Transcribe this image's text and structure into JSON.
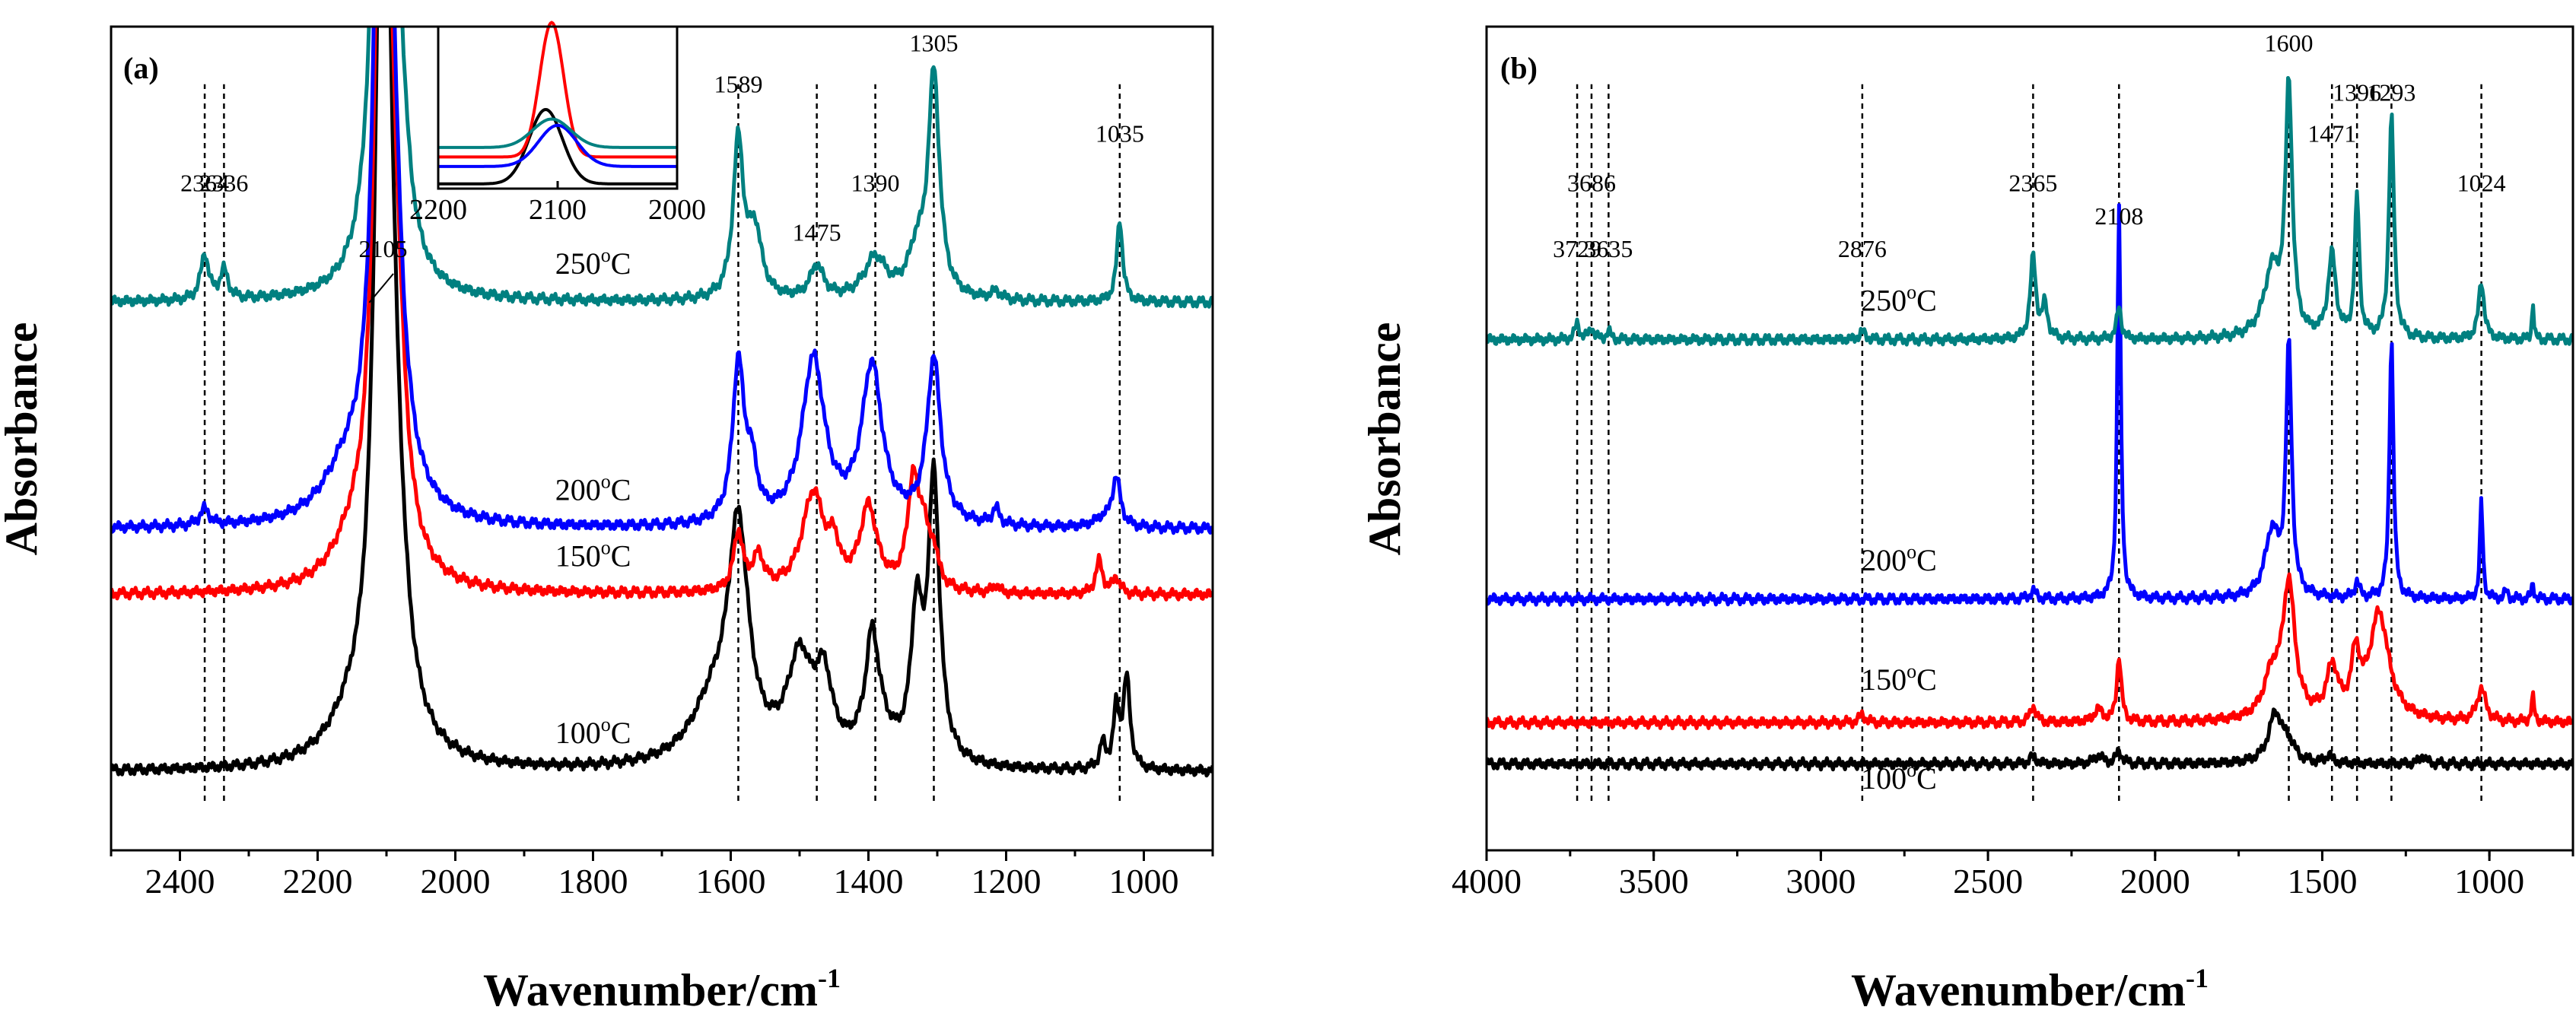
{
  "chart_data": [
    {
      "panel": "(a)",
      "type": "line",
      "title": "",
      "xlabel": "Wavenumber/cm",
      "xlabel_sup": "-1",
      "ylabel": "Absorbance",
      "xlim": [
        2500,
        900
      ],
      "ylim": [
        0,
        1
      ],
      "xticks": [
        2400,
        2200,
        2000,
        1800,
        1600,
        1400,
        1200,
        1000
      ],
      "xtick_labels": [
        "2400",
        "2200",
        "2000",
        "1800",
        "1600",
        "1400",
        "1200",
        "1000"
      ],
      "series": [
        {
          "name": "100oC",
          "label_main": "100",
          "label_unit": "C",
          "label_sup": "o",
          "color": "#000000",
          "baseline": 0.095,
          "label_x": 1855,
          "label_y_off": 0.035,
          "peaks": [
            [
              2105,
              1.2,
              12
            ],
            [
              2090,
              0.25,
              20
            ],
            [
              2150,
              0.04,
              40
            ],
            [
              1589,
              0.27,
              18
            ],
            [
              1625,
              0.07,
              40
            ],
            [
              1500,
              0.12,
              22
            ],
            [
              1465,
              0.09,
              15
            ],
            [
              1395,
              0.1,
              10
            ],
            [
              1390,
              0.06,
              22
            ],
            [
              1330,
              0.17,
              10
            ],
            [
              1305,
              0.34,
              10
            ],
            [
              1060,
              0.03,
              5
            ],
            [
              1040,
              0.07,
              5
            ],
            [
              1025,
              0.11,
              6
            ]
          ]
        },
        {
          "name": "150oC",
          "label_main": "150",
          "label_unit": "C",
          "label_sup": "o",
          "color": "#ff0000",
          "baseline": 0.31,
          "label_x": 1855,
          "label_y_off": 0.035,
          "peaks": [
            [
              2105,
              1.2,
              12
            ],
            [
              2085,
              0.2,
              15
            ],
            [
              2150,
              0.04,
              35
            ],
            [
              1589,
              0.07,
              8
            ],
            [
              1560,
              0.04,
              10
            ],
            [
              1480,
              0.12,
              20
            ],
            [
              1450,
              0.04,
              8
            ],
            [
              1400,
              0.1,
              15
            ],
            [
              1335,
              0.13,
              10
            ],
            [
              1320,
              0.06,
              8
            ],
            [
              1305,
              0.04,
              8
            ],
            [
              1215,
              0.01,
              5
            ],
            [
              1065,
              0.04,
              6
            ],
            [
              1040,
              0.02,
              6
            ]
          ]
        },
        {
          "name": "200oC",
          "label_main": "200",
          "label_unit": "C",
          "label_sup": "o",
          "color": "#0000ff",
          "baseline": 0.39,
          "label_x": 1855,
          "label_y_off": 0.035,
          "peaks": [
            [
              2105,
              1.2,
              12
            ],
            [
              2090,
              0.2,
              18
            ],
            [
              2160,
              0.05,
              40
            ],
            [
              2364,
              0.02,
              8
            ],
            [
              1589,
              0.19,
              10
            ],
            [
              1570,
              0.06,
              10
            ],
            [
              1480,
              0.2,
              20
            ],
            [
              1395,
              0.19,
              18
            ],
            [
              1305,
              0.2,
              12
            ],
            [
              1215,
              0.02,
              6
            ],
            [
              1040,
              0.06,
              7
            ],
            [
              1060,
              0.01,
              15
            ]
          ]
        },
        {
          "name": "250oC",
          "label_main": "250",
          "label_unit": "C",
          "label_sup": "o",
          "color": "#008080",
          "baseline": 0.665,
          "label_x": 1855,
          "label_y_off": 0.035,
          "peaks": [
            [
              2105,
              1.2,
              12
            ],
            [
              2085,
              0.2,
              15
            ],
            [
              2364,
              0.055,
              7
            ],
            [
              2336,
              0.035,
              7
            ],
            [
              1589,
              0.19,
              9
            ],
            [
              1565,
              0.08,
              12
            ],
            [
              1475,
              0.04,
              12
            ],
            [
              1390,
              0.05,
              20
            ],
            [
              1305,
              0.27,
              10
            ],
            [
              1330,
              0.05,
              15
            ],
            [
              1035,
              0.1,
              5
            ],
            [
              1215,
              0.01,
              8
            ]
          ]
        }
      ],
      "annotations": [
        {
          "text": "2364",
          "wn": 2364,
          "y": 0.8
        },
        {
          "text": "2336",
          "wn": 2336,
          "y": 0.8
        },
        {
          "text": "2105",
          "wn": 2105,
          "y": 0.72
        },
        {
          "text": "1589",
          "wn": 1589,
          "y": 0.92
        },
        {
          "text": "1475",
          "wn": 1475,
          "y": 0.74
        },
        {
          "text": "1390",
          "wn": 1390,
          "y": 0.8
        },
        {
          "text": "1305",
          "wn": 1305,
          "y": 0.97
        },
        {
          "text": "1035",
          "wn": 1035,
          "y": 0.86
        }
      ],
      "dashed_lines": [
        2364,
        2336,
        1589,
        1475,
        1390,
        1305,
        1035
      ],
      "inset": {
        "xlim": [
          2200,
          2000
        ],
        "xticks": [
          2200,
          2100,
          2000
        ],
        "xtick_labels": [
          "2200",
          "2100",
          "2000"
        ],
        "series": [
          {
            "color": "#000000",
            "baseline": 0.03,
            "amp": 0.47,
            "center": 2110,
            "width": 14
          },
          {
            "color": "#ff0000",
            "baseline": 0.2,
            "amp": 0.85,
            "center": 2105,
            "width": 10
          },
          {
            "color": "#0000ff",
            "baseline": 0.14,
            "amp": 0.26,
            "center": 2100,
            "width": 16
          },
          {
            "color": "#008080",
            "baseline": 0.26,
            "amp": 0.18,
            "center": 2105,
            "width": 16
          }
        ]
      }
    },
    {
      "panel": "(b)",
      "type": "line",
      "title": "",
      "xlabel": "Wavenumber/cm",
      "xlabel_sup": "-1",
      "ylabel": "Absorbance",
      "xlim": [
        4000,
        750
      ],
      "ylim": [
        0,
        1
      ],
      "xticks": [
        4000,
        3500,
        3000,
        2500,
        2000,
        1500,
        1000
      ],
      "xtick_labels": [
        "4000",
        "3500",
        "3000",
        "2500",
        "2000",
        "1500",
        "1000"
      ],
      "series": [
        {
          "name": "100oC",
          "label_main": "100",
          "label_unit": "C",
          "label_sup": "o",
          "color": "#000000",
          "baseline": 0.105,
          "label_x": 2880,
          "label_y_off": -0.03,
          "peaks": [
            [
              2365,
              0.01,
              10
            ],
            [
              2108,
              0.015,
              10
            ],
            [
              2170,
              0.01,
              15
            ],
            [
              1640,
              0.06,
              25
            ],
            [
              1600,
              0.02,
              20
            ],
            [
              1480,
              0.01,
              10
            ],
            [
              1200,
              0.01,
              10
            ]
          ]
        },
        {
          "name": "150oC",
          "label_main": "150",
          "label_unit": "C",
          "label_sup": "o",
          "color": "#ff0000",
          "baseline": 0.155,
          "label_x": 2880,
          "label_y_off": 0.04,
          "peaks": [
            [
              2365,
              0.02,
              10
            ],
            [
              2108,
              0.08,
              8
            ],
            [
              2170,
              0.015,
              15
            ],
            [
              1600,
              0.16,
              22
            ],
            [
              1650,
              0.05,
              30
            ],
            [
              1470,
              0.06,
              20
            ],
            [
              1330,
              0.13,
              35
            ],
            [
              1400,
              0.07,
              15
            ],
            [
              1024,
              0.04,
              15
            ],
            [
              870,
              0.03,
              5
            ],
            [
              2876,
              0.01,
              10
            ]
          ]
        },
        {
          "name": "200oC",
          "label_main": "200",
          "label_unit": "C",
          "label_sup": "o",
          "color": "#0000ff",
          "baseline": 0.305,
          "label_x": 2880,
          "label_y_off": 0.035,
          "peaks": [
            [
              2108,
              0.48,
              6
            ],
            [
              2365,
              0.01,
              10
            ],
            [
              1600,
              0.3,
              10
            ],
            [
              1650,
              0.08,
              25
            ],
            [
              1396,
              0.02,
              8
            ],
            [
              1293,
              0.32,
              7
            ],
            [
              1024,
              0.12,
              5
            ],
            [
              870,
              0.02,
              4
            ],
            [
              950,
              0.01,
              6
            ]
          ]
        },
        {
          "name": "250oC",
          "label_main": "250",
          "label_unit": "C",
          "label_sup": "o",
          "color": "#008080",
          "baseline": 0.62,
          "label_x": 2880,
          "label_y_off": 0.035,
          "peaks": [
            [
              2365,
              0.1,
              10
            ],
            [
              2330,
              0.04,
              10
            ],
            [
              2108,
              0.04,
              8
            ],
            [
              1600,
              0.3,
              12
            ],
            [
              1650,
              0.08,
              30
            ],
            [
              1471,
              0.1,
              14
            ],
            [
              1396,
              0.17,
              8
            ],
            [
              1293,
              0.27,
              9
            ],
            [
              1024,
              0.07,
              10
            ],
            [
              870,
              0.05,
              3
            ],
            [
              3729,
              0.02,
              8
            ],
            [
              3686,
              0.015,
              8
            ],
            [
              3635,
              0.01,
              8
            ],
            [
              2876,
              0.01,
              10
            ]
          ]
        }
      ],
      "annotations": [
        {
          "text": "3729",
          "wn": 3729,
          "y": 0.72
        },
        {
          "text": "3686",
          "wn": 3686,
          "y": 0.8
        },
        {
          "text": "3635",
          "wn": 3635,
          "y": 0.72
        },
        {
          "text": "2876",
          "wn": 2876,
          "y": 0.72
        },
        {
          "text": "2365",
          "wn": 2365,
          "y": 0.8
        },
        {
          "text": "2108",
          "wn": 2108,
          "y": 0.76
        },
        {
          "text": "1600",
          "wn": 1600,
          "y": 0.97
        },
        {
          "text": "1471",
          "wn": 1471,
          "y": 0.86
        },
        {
          "text": "1396",
          "wn": 1396,
          "y": 0.91
        },
        {
          "text": "1293",
          "wn": 1293,
          "y": 0.91
        },
        {
          "text": "1024",
          "wn": 1024,
          "y": 0.8
        }
      ],
      "dashed_lines": [
        3729,
        3686,
        3635,
        2876,
        2365,
        2108,
        1600,
        1471,
        1396,
        1293,
        1024
      ]
    }
  ]
}
